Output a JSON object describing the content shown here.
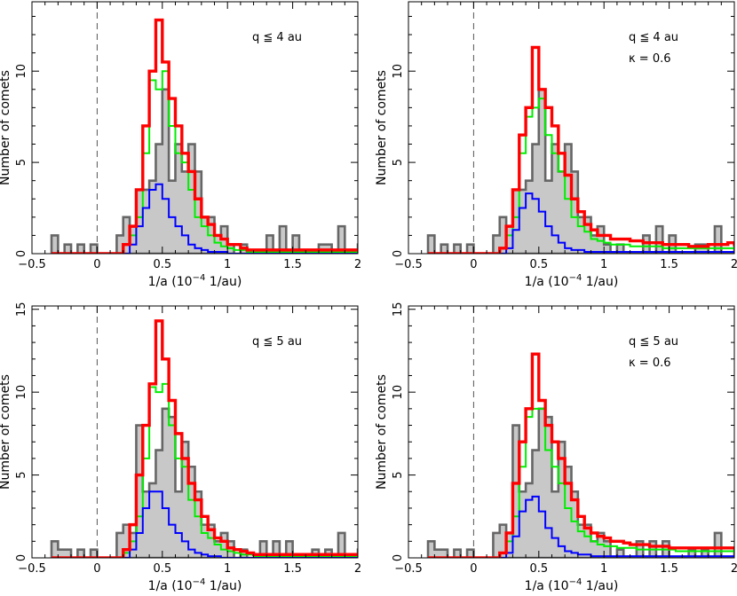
{
  "colors": {
    "observed_fill": "#c8c8c8",
    "observed_line": "#666666",
    "red": "#ff0000",
    "green": "#00ee00",
    "blue": "#0000ff",
    "zero_line": "#555555"
  },
  "chart_data": [
    {
      "type": "histogram",
      "title": "",
      "xlabel": "1/a (10^-4 1/au)",
      "ylabel": "Number of comets",
      "xlim": [
        -0.5,
        2.0
      ],
      "ylim": [
        0,
        13.8
      ],
      "x_ticks": [
        "−0.5",
        "0",
        "0.5",
        "1",
        "1.5",
        "2"
      ],
      "y_ticks": [
        "0",
        "5",
        "10"
      ],
      "y_tick_values": [
        0,
        5,
        10
      ],
      "annotations": [
        "q ≦ 4 au"
      ],
      "bin_start": -0.35,
      "bin_width": 0.05,
      "series": [
        {
          "style": "observed",
          "values": [
            1,
            0,
            0.5,
            0,
            0.5,
            0,
            0.5,
            0,
            0,
            0,
            1,
            2,
            1.5,
            3.5,
            3.5,
            4,
            6,
            9,
            4,
            6,
            4.5,
            6,
            4.5,
            2,
            2,
            1,
            1.5,
            0.5,
            0,
            0.5,
            0,
            0,
            0,
            1,
            0,
            1.5,
            0,
            1,
            0,
            0,
            0,
            0.5,
            0.5,
            0,
            1.5,
            0,
            0,
            0.5,
            0,
            0,
            0,
            0,
            0,
            0,
            0
          ]
        },
        {
          "style": "green",
          "values": [
            0,
            0,
            0,
            0,
            0,
            0,
            0,
            0,
            0,
            0,
            0,
            0.5,
            1,
            2,
            5.5,
            9.5,
            9,
            10,
            7,
            5.5,
            5,
            3.5,
            2,
            1.5,
            1,
            0.6,
            0.4,
            0.3,
            0.2,
            0.2,
            0.1,
            0.1,
            0.1,
            0.1,
            0.1,
            0.1,
            0.1,
            0.1,
            0.1,
            0.1,
            0.1,
            0.1,
            0.1,
            0.1,
            0.1,
            0.1,
            0.1,
            0.1,
            0,
            0,
            0,
            0,
            0,
            0,
            0
          ]
        },
        {
          "style": "blue",
          "values": [
            0,
            0,
            0,
            0,
            0,
            0,
            0,
            0,
            0,
            0,
            0,
            0,
            0.5,
            1.5,
            2.5,
            3.5,
            3.8,
            3,
            2,
            1.5,
            1,
            0.5,
            0.3,
            0.2,
            0.1,
            0.1,
            0.1,
            0,
            0,
            0,
            0,
            0,
            0,
            0,
            0,
            0,
            0,
            0,
            0,
            0,
            0,
            0,
            0,
            0,
            0,
            0,
            0,
            0,
            0,
            0,
            0,
            0,
            0,
            0,
            0
          ]
        },
        {
          "style": "red",
          "values": [
            0,
            0,
            0,
            0,
            0,
            0,
            0,
            0,
            0,
            0,
            0,
            0.5,
            1.5,
            3.5,
            7,
            10,
            12.8,
            10.5,
            8.5,
            7,
            5.5,
            4.5,
            3,
            2,
            1.6,
            1,
            0.8,
            0.5,
            0.5,
            0.3,
            0.2,
            0.2,
            0.2,
            0.2,
            0.2,
            0.2,
            0.2,
            0.2,
            0.2,
            0.2,
            0.2,
            0.2,
            0.2,
            0.2,
            0.2,
            0.2,
            0.2,
            0.2,
            0.1,
            0.1,
            0,
            0,
            0,
            0,
            0
          ]
        }
      ]
    },
    {
      "type": "histogram",
      "title": "",
      "xlabel": "1/a (10^-4 1/au)",
      "ylabel": "Number of comets",
      "xlim": [
        -0.5,
        2.0
      ],
      "ylim": [
        0,
        13.8
      ],
      "x_ticks": [
        "−0.5",
        "0",
        "0.5",
        "1",
        "1.5",
        "2"
      ],
      "y_ticks": [
        "0",
        "5",
        "10"
      ],
      "y_tick_values": [
        0,
        5,
        10
      ],
      "annotations": [
        "q ≦ 4 au",
        "κ = 0.6"
      ],
      "bin_start": -0.35,
      "bin_width": 0.05,
      "series": [
        {
          "style": "observed",
          "values": [
            1,
            0,
            0.5,
            0,
            0.5,
            0,
            0.5,
            0,
            0,
            0,
            1,
            2,
            1.5,
            3.5,
            3.5,
            4,
            6,
            9,
            4,
            6,
            4.5,
            6,
            4.5,
            2,
            2,
            1,
            1.5,
            0.5,
            0,
            0.5,
            0,
            0,
            0,
            1,
            0,
            1.5,
            0,
            1,
            0,
            0,
            0,
            0.5,
            0.5,
            0,
            1.5,
            0,
            0,
            0.5,
            0,
            0,
            0,
            0,
            0,
            0,
            0
          ]
        },
        {
          "style": "green",
          "values": [
            0,
            0,
            0,
            0,
            0,
            0,
            0,
            0,
            0,
            0,
            0,
            0.3,
            1,
            2,
            5.5,
            7.5,
            8,
            8.5,
            6.5,
            5.5,
            4.5,
            3,
            2,
            1.5,
            1.2,
            0.8,
            0.7,
            0.6,
            0.5,
            0.5,
            0.5,
            0.4,
            0.4,
            0.4,
            0.4,
            0.4,
            0.3,
            0.3,
            0.3,
            0.3,
            0.3,
            0.3,
            0.3,
            0.3,
            0.3,
            0.3,
            0.3,
            0.3,
            0.3,
            0.3,
            0.3,
            0.3,
            0.3,
            0.3,
            0.3
          ]
        },
        {
          "style": "blue",
          "values": [
            0,
            0,
            0,
            0,
            0,
            0,
            0,
            0,
            0,
            0,
            0,
            0,
            0.3,
            1.3,
            2.5,
            3.3,
            3,
            2.3,
            1.5,
            1,
            0.6,
            0.3,
            0.2,
            0.2,
            0.1,
            0.1,
            0.1,
            0.1,
            0.1,
            0.1,
            0.1,
            0.1,
            0.1,
            0.1,
            0.1,
            0.1,
            0.1,
            0.1,
            0.1,
            0.1,
            0.1,
            0.1,
            0.1,
            0.1,
            0.1,
            0.1,
            0.1,
            0.1,
            0.1,
            0.1,
            0.1,
            0.1,
            0.1,
            0.1,
            0.1
          ]
        },
        {
          "style": "red",
          "values": [
            0,
            0,
            0,
            0,
            0,
            0,
            0,
            0,
            0,
            0,
            0,
            0.3,
            1.5,
            3.5,
            6.5,
            8,
            11.3,
            9,
            8,
            7,
            5.5,
            4.3,
            3,
            2.3,
            1.6,
            1.3,
            1,
            1,
            0.8,
            0.8,
            0.8,
            0.7,
            0.7,
            0.6,
            0.6,
            0.6,
            0.5,
            0.5,
            0.5,
            0.5,
            0.4,
            0.4,
            0.4,
            0.5,
            0.5,
            0.5,
            0.6,
            0.5,
            0.5,
            0.4,
            0.5,
            0.4,
            0.5,
            0.4,
            0.6
          ]
        }
      ]
    },
    {
      "type": "histogram",
      "title": "",
      "xlabel": "1/a (10^-4 1/au)",
      "ylabel": "Number of comets",
      "xlim": [
        -0.5,
        2.0
      ],
      "ylim": [
        0,
        15.2
      ],
      "x_ticks": [
        "−0.5",
        "0",
        "0.5",
        "1",
        "1.5",
        "2"
      ],
      "y_ticks": [
        "0",
        "5",
        "10",
        "15"
      ],
      "y_tick_values": [
        0,
        5,
        10,
        15
      ],
      "annotations": [
        "q ≦ 5 au"
      ],
      "bin_start": -0.35,
      "bin_width": 0.05,
      "series": [
        {
          "style": "observed",
          "values": [
            1,
            0.5,
            0.5,
            0,
            0.5,
            0,
            0.5,
            0,
            0,
            0,
            1.5,
            2,
            1.5,
            8,
            4,
            4.5,
            6.5,
            9,
            8.5,
            4,
            7,
            5.5,
            4,
            2,
            2,
            1,
            1.5,
            1,
            0,
            0.5,
            0,
            0,
            1,
            0,
            1,
            0,
            1,
            0,
            0,
            0,
            0.5,
            0,
            0.5,
            0,
            1.5,
            0,
            0,
            0.5,
            0,
            0,
            0,
            0,
            0,
            0,
            0
          ]
        },
        {
          "style": "green",
          "values": [
            0,
            0,
            0,
            0,
            0,
            0,
            0,
            0,
            0,
            0,
            0,
            0.3,
            1,
            2.5,
            6,
            10.3,
            10,
            10.5,
            8,
            6,
            5.5,
            3.5,
            2.5,
            1.5,
            1.2,
            0.8,
            0.5,
            0.4,
            0.3,
            0.2,
            0.2,
            0.1,
            0.1,
            0.1,
            0.1,
            0.1,
            0.1,
            0.1,
            0.1,
            0.1,
            0.1,
            0.1,
            0.1,
            0.1,
            0.1,
            0.1,
            0.1,
            0.1,
            0,
            0,
            0,
            0,
            0,
            0,
            0
          ]
        },
        {
          "style": "blue",
          "values": [
            0,
            0,
            0,
            0,
            0,
            0,
            0,
            0,
            0,
            0,
            0,
            0,
            0.5,
            1.5,
            3,
            4,
            4,
            3,
            2,
            1.5,
            1,
            0.5,
            0.3,
            0.2,
            0.1,
            0.1,
            0,
            0,
            0,
            0,
            0,
            0,
            0,
            0,
            0,
            0,
            0,
            0,
            0,
            0,
            0,
            0,
            0,
            0,
            0,
            0,
            0,
            0,
            0,
            0,
            0,
            0,
            0,
            0,
            0
          ]
        },
        {
          "style": "red",
          "values": [
            0,
            0,
            0,
            0,
            0,
            0,
            0,
            0,
            0,
            0,
            0,
            0.5,
            2,
            5,
            8,
            10.5,
            14.3,
            12,
            9.5,
            7.5,
            6,
            4.5,
            3.5,
            2.5,
            1.7,
            1.2,
            1,
            0.6,
            0.5,
            0.4,
            0.3,
            0.2,
            0.2,
            0.2,
            0.2,
            0.2,
            0.2,
            0.2,
            0.2,
            0.2,
            0.2,
            0.2,
            0.2,
            0.2,
            0.2,
            0.2,
            0.2,
            0.2,
            0.1,
            0.1,
            0,
            0,
            0,
            0,
            0
          ]
        }
      ]
    },
    {
      "type": "histogram",
      "title": "",
      "xlabel": "1/a (10^-4 1/au)",
      "ylabel": "Number of comets",
      "xlim": [
        -0.5,
        2.0
      ],
      "ylim": [
        0,
        15.2
      ],
      "x_ticks": [
        "−0.5",
        "0",
        "0.5",
        "1",
        "1.5",
        "2"
      ],
      "y_ticks": [
        "0",
        "5",
        "10",
        "15"
      ],
      "y_tick_values": [
        0,
        5,
        10,
        15
      ],
      "annotations": [
        "q ≦ 5 au",
        "κ = 0.6"
      ],
      "bin_start": -0.35,
      "bin_width": 0.05,
      "series": [
        {
          "style": "observed",
          "values": [
            1,
            0.5,
            0.5,
            0,
            0.5,
            0,
            0.5,
            0,
            0,
            0,
            1.5,
            2,
            1.5,
            8,
            4,
            4.5,
            6.5,
            9,
            8.5,
            4,
            7,
            5.5,
            4,
            2,
            2,
            1,
            1.5,
            1,
            0,
            0.5,
            0,
            0,
            1,
            0,
            1,
            0,
            1,
            0,
            0,
            0,
            0.5,
            0,
            0.5,
            0,
            1.5,
            0,
            0,
            0.5,
            0,
            0,
            0,
            0,
            0,
            0,
            0
          ]
        },
        {
          "style": "green",
          "values": [
            0,
            0,
            0,
            0,
            0,
            0,
            0,
            0,
            0,
            0,
            0,
            0.3,
            1,
            2.5,
            5.5,
            8.5,
            9,
            9,
            6.5,
            5.5,
            4.5,
            3,
            2.2,
            1.6,
            1.3,
            1,
            0.8,
            0.7,
            0.7,
            0.6,
            0.6,
            0.6,
            0.5,
            0.5,
            0.5,
            0.5,
            0.5,
            0.5,
            0.4,
            0.4,
            0.4,
            0.4,
            0.4,
            0.4,
            0.4,
            0.4,
            0.4,
            0.4,
            0.4,
            0.4,
            0.4,
            0.4,
            0.4,
            0.4,
            0.5
          ]
        },
        {
          "style": "blue",
          "values": [
            0,
            0,
            0,
            0,
            0,
            0,
            0,
            0,
            0,
            0,
            0,
            0,
            0.3,
            1.3,
            2.8,
            3.5,
            3.7,
            2.8,
            1.8,
            1.2,
            0.7,
            0.4,
            0.3,
            0.2,
            0.2,
            0.1,
            0.1,
            0.1,
            0.1,
            0.1,
            0.1,
            0.1,
            0.1,
            0.1,
            0.1,
            0.1,
            0.1,
            0.1,
            0.1,
            0.1,
            0.1,
            0.1,
            0.1,
            0.1,
            0.1,
            0.1,
            0.1,
            0.1,
            0.1,
            0.1,
            0.1,
            0.1,
            0.1,
            0.1,
            0.1
          ]
        },
        {
          "style": "red",
          "values": [
            0,
            0,
            0,
            0,
            0,
            0,
            0,
            0,
            0,
            0,
            0,
            0.3,
            1.5,
            4.5,
            7,
            9,
            12.3,
            9.5,
            8,
            7,
            6,
            4.5,
            3.5,
            2.5,
            1.8,
            1.5,
            1.3,
            1.2,
            1,
            1,
            0.9,
            0.8,
            0.8,
            0.8,
            0.7,
            0.7,
            0.7,
            0.6,
            0.6,
            0.6,
            0.6,
            0.6,
            0.6,
            0.6,
            0.6,
            0.6,
            0.6,
            0.6,
            0.6,
            0.6,
            0.6,
            0.6,
            0.6,
            0.6,
            0.7
          ]
        }
      ]
    }
  ]
}
